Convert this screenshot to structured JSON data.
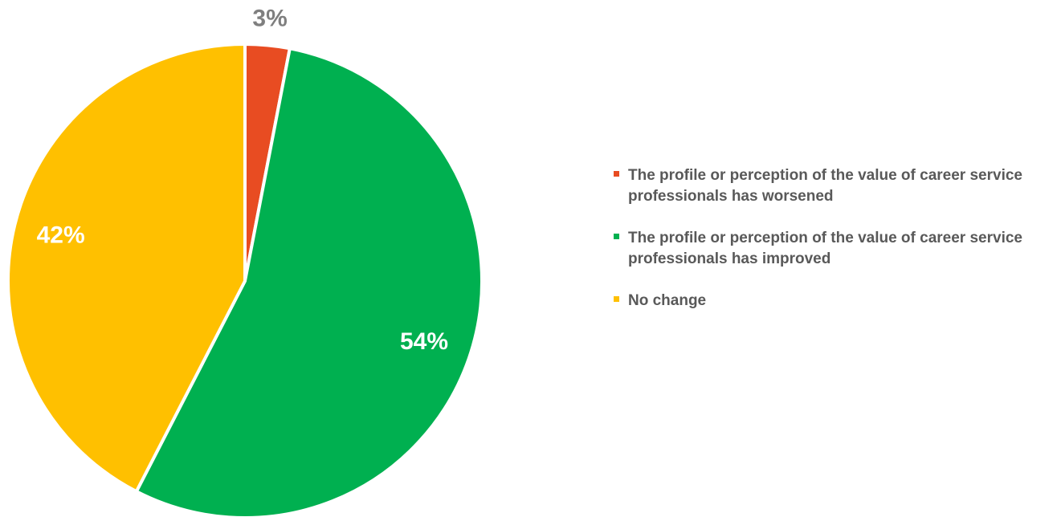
{
  "chart_data": {
    "type": "pie",
    "categories": [
      "The profile or perception of the value of career service professionals has worsened",
      "The profile or perception of the value of career service professionals has improved",
      "No change"
    ],
    "values": [
      3,
      54,
      42
    ],
    "value_labels": [
      "3%",
      "54%",
      "42%"
    ],
    "colors": [
      "#E84C22",
      "#00B050",
      "#FFC000"
    ],
    "legend": "right"
  }
}
